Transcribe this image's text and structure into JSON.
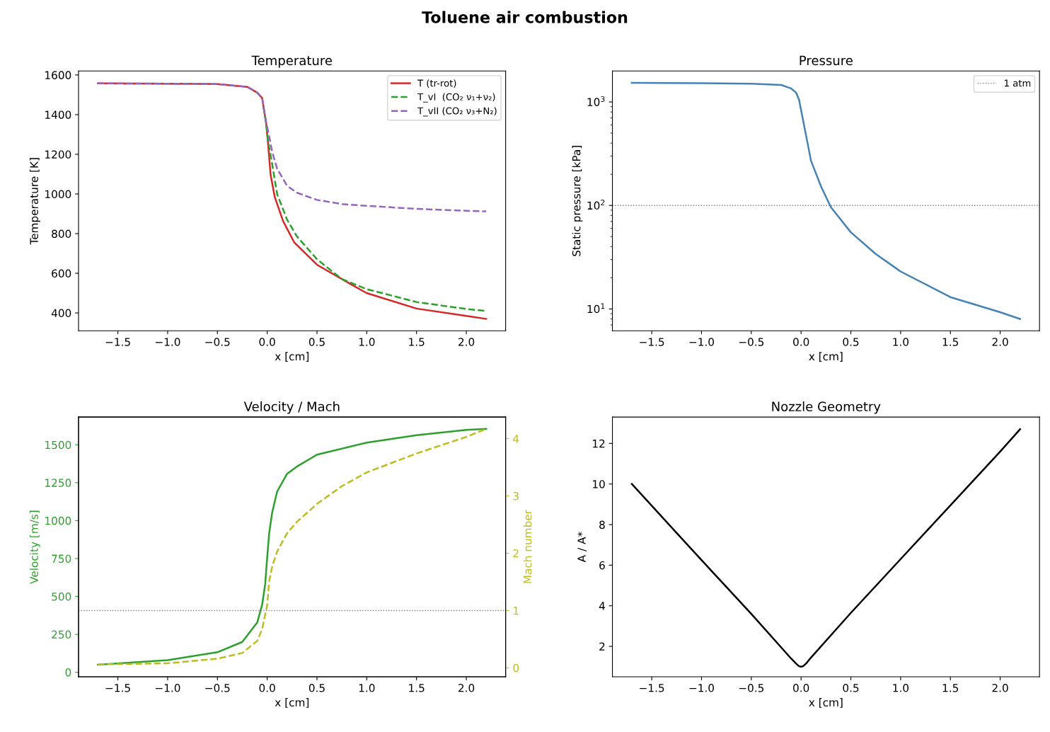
{
  "chart_data": [
    {
      "type": "line",
      "title": "Temperature",
      "xlabel": "x [cm]",
      "ylabel": "Temperature [K]",
      "annotations": [
        "Toluene air combustion"
      ],
      "legend": "top right",
      "xlim": [
        -1.895,
        2.395
      ],
      "xticks": [
        {
          "value": -1.5,
          "label": "−1.5"
        },
        {
          "value": -1.0,
          "label": "−1.0"
        },
        {
          "value": -0.5,
          "label": "−0.5"
        },
        {
          "value": 0.0,
          "label": "0.0"
        },
        {
          "value": 0.5,
          "label": "0.5"
        },
        {
          "value": 1.0,
          "label": "1.0"
        },
        {
          "value": 1.5,
          "label": "1.5"
        },
        {
          "value": 2.0,
          "label": "2.0"
        }
      ],
      "ylim": [
        310,
        1620
      ],
      "yticks": [
        400,
        600,
        800,
        1000,
        1200,
        1400,
        1600
      ],
      "series": [
        {
          "name": "T (tr-rot)",
          "color": "#d62728",
          "line_style": "solid",
          "x": [
            -1.7,
            -1.0,
            -0.5,
            -0.2,
            -0.1,
            -0.05,
            -0.037,
            -0.01,
            0.006,
            0.034,
            0.076,
            0.16,
            0.27,
            0.5,
            0.87,
            1.0,
            1.5,
            2.0,
            2.2
          ],
          "values": [
            1558,
            1556,
            1554,
            1540,
            1511,
            1483,
            1440,
            1354,
            1270,
            1098,
            984,
            863,
            757,
            643,
            536,
            500,
            422,
            385,
            370
          ]
        },
        {
          "name": "T_vI  (CO₂ ν₁+ν₂)",
          "color": "#2ca02c",
          "line_style": "dashed",
          "x": [
            -0.037,
            -0.01,
            0.006,
            0.05,
            0.1,
            0.2,
            0.3,
            0.5,
            0.75,
            1.0,
            1.5,
            2.0,
            2.2
          ],
          "values": [
            1440,
            1354,
            1275,
            1150,
            999,
            870,
            785,
            671,
            571,
            520,
            455,
            420,
            410
          ]
        },
        {
          "name": "T_vII (CO₂ ν₃+N₂)",
          "color": "#9467bd",
          "line_style": "dashed",
          "x": [
            -1.7,
            -1.0,
            -0.5,
            -0.2,
            -0.1,
            -0.05,
            -0.037,
            -0.01,
            0.02,
            0.05,
            0.1,
            0.2,
            0.3,
            0.5,
            0.75,
            1.0,
            1.5,
            2.0,
            2.2
          ],
          "values": [
            1558,
            1556,
            1554,
            1540,
            1511,
            1483,
            1440,
            1360,
            1290,
            1212,
            1127,
            1041,
            1006,
            970,
            949,
            940,
            925,
            915,
            912
          ]
        }
      ]
    },
    {
      "type": "line",
      "title": "Pressure",
      "xlabel": "x [cm]",
      "ylabel": "Static pressure [kPa]",
      "log": "y",
      "legend": "top right",
      "xlim": [
        -1.895,
        2.395
      ],
      "xticks": [
        {
          "value": -1.5,
          "label": "−1.5"
        },
        {
          "value": -1.0,
          "label": "−1.0"
        },
        {
          "value": -0.5,
          "label": "−0.5"
        },
        {
          "value": 0.0,
          "label": "0.0"
        },
        {
          "value": 0.5,
          "label": "0.5"
        },
        {
          "value": 1.0,
          "label": "1.0"
        },
        {
          "value": 1.5,
          "label": "1.5"
        },
        {
          "value": 2.0,
          "label": "2.0"
        }
      ],
      "ylim": [
        6.15,
        1990
      ],
      "yticks": [
        {
          "value": 10,
          "label": "10$^{1}$"
        },
        {
          "value": 100,
          "label": "10$^{2}$"
        },
        {
          "value": 1000,
          "label": "10$^{3}$"
        }
      ],
      "ref_lines": [
        {
          "axis": "y",
          "value": 100,
          "label": "1 atm",
          "color": "#808080",
          "line_style": "dotted"
        }
      ],
      "series": [
        {
          "color": "#4682b4",
          "line_style": "solid",
          "x": [
            -1.7,
            -1.0,
            -0.5,
            -0.2,
            -0.1,
            -0.05,
            -0.02,
            0.05,
            0.1,
            0.2,
            0.3,
            0.5,
            0.75,
            1.0,
            1.5,
            2.0,
            2.2
          ],
          "values": [
            1530,
            1520,
            1500,
            1460,
            1350,
            1230,
            1050,
            475,
            270,
            153,
            96,
            55,
            34,
            23,
            13,
            9.3,
            8
          ]
        }
      ]
    },
    {
      "type": "line",
      "title": "Velocity / Mach",
      "xlabel": "x [cm]",
      "ylabel": "Velocity [m/s]",
      "y2label": "Mach number",
      "xlim": [
        -1.895,
        2.395
      ],
      "xticks": [
        {
          "value": -1.5,
          "label": "−1.5"
        },
        {
          "value": -1.0,
          "label": "−1.0"
        },
        {
          "value": -0.5,
          "label": "−0.5"
        },
        {
          "value": 0.0,
          "label": "0.0"
        },
        {
          "value": 0.5,
          "label": "0.5"
        },
        {
          "value": 1.0,
          "label": "1.0"
        },
        {
          "value": 1.5,
          "label": "1.5"
        },
        {
          "value": 2.0,
          "label": "2.0"
        }
      ],
      "ylim": [
        -30,
        1683
      ],
      "yticks": [
        0,
        250,
        500,
        750,
        1000,
        1250,
        1500
      ],
      "y2lim": [
        -0.156,
        4.376
      ],
      "y2ticks": [
        0,
        1,
        2,
        3,
        4
      ],
      "ref_lines": [
        {
          "axis": "y2",
          "value": 1,
          "color": "#808080",
          "line_style": "dotted"
        }
      ],
      "series": [
        {
          "color": "#2ca02c",
          "line_style": "solid",
          "x": [
            -1.7,
            -1.0,
            -0.5,
            -0.25,
            -0.1,
            -0.05,
            -0.02,
            0.0,
            0.02,
            0.05,
            0.1,
            0.2,
            0.3,
            0.5,
            1.0,
            1.5,
            2.0,
            2.2
          ],
          "values": [
            50,
            80,
            132,
            200,
            328,
            447,
            582,
            759,
            917,
            1053,
            1192,
            1309,
            1357,
            1435,
            1514,
            1563,
            1598,
            1605
          ]
        },
        {
          "color": "#bcbd22",
          "line_style": "dashed",
          "axis": "y2",
          "x": [
            -1.7,
            -1.0,
            -0.5,
            -0.25,
            -0.1,
            -0.05,
            0.0,
            0.02,
            0.05,
            0.1,
            0.2,
            0.3,
            0.5,
            0.75,
            1.0,
            1.5,
            2.0,
            2.2
          ],
          "values": [
            0.06,
            0.08,
            0.16,
            0.26,
            0.47,
            0.68,
            1.1,
            1.51,
            1.77,
            2.03,
            2.35,
            2.55,
            2.86,
            3.17,
            3.41,
            3.74,
            4.03,
            4.17
          ]
        }
      ]
    },
    {
      "type": "line",
      "title": "Nozzle Geometry",
      "xlabel": "x [cm]",
      "ylabel": "A / A*",
      "xlim": [
        -1.895,
        2.395
      ],
      "xticks": [
        {
          "value": -1.5,
          "label": "−1.5"
        },
        {
          "value": -1.0,
          "label": "−1.0"
        },
        {
          "value": -0.5,
          "label": "−0.5"
        },
        {
          "value": 0.0,
          "label": "0.0"
        },
        {
          "value": 0.5,
          "label": "0.5"
        },
        {
          "value": 1.0,
          "label": "1.0"
        },
        {
          "value": 1.5,
          "label": "1.5"
        },
        {
          "value": 2.0,
          "label": "2.0"
        }
      ],
      "ylim": [
        0.5,
        13.3
      ],
      "yticks": [
        2,
        4,
        6,
        8,
        10,
        12
      ],
      "series": [
        {
          "color": "#000000",
          "line_style": "solid",
          "x": [
            -1.7,
            -1.0,
            -0.5,
            -0.1,
            -0.05,
            -0.02,
            0.0,
            0.02,
            0.05,
            0.1,
            0.5,
            1.0,
            1.5,
            2.0,
            2.2
          ],
          "values": [
            10,
            6.25,
            3.6,
            1.4,
            1.15,
            1.02,
            1.0,
            1.02,
            1.15,
            1.45,
            3.65,
            6.3,
            8.95,
            11.6,
            12.7
          ]
        }
      ]
    }
  ]
}
